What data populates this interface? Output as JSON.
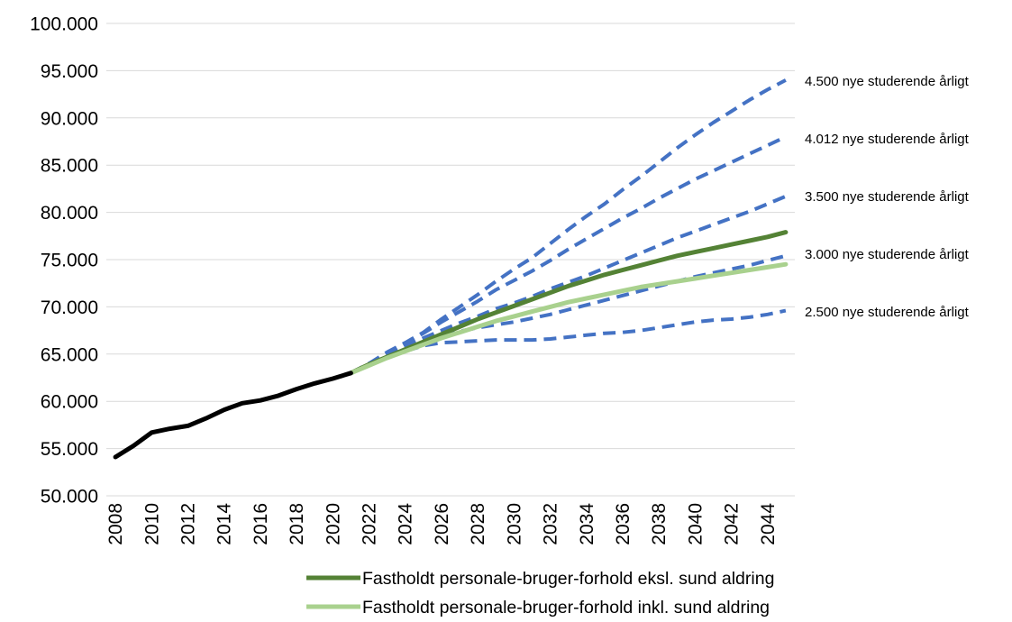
{
  "chart_data": {
    "type": "line",
    "title": "",
    "xlabel": "",
    "ylabel": "",
    "ylim": [
      50000,
      100000
    ],
    "xlim": [
      2008,
      2045
    ],
    "grid": true,
    "y_ticks": [
      "50.000",
      "55.000",
      "60.000",
      "65.000",
      "70.000",
      "75.000",
      "80.000",
      "85.000",
      "90.000",
      "95.000",
      "100.000"
    ],
    "x_ticks": [
      "2008",
      "2010",
      "2012",
      "2014",
      "2016",
      "2018",
      "2020",
      "2022",
      "2024",
      "2026",
      "2028",
      "2030",
      "2032",
      "2034",
      "2036",
      "2038",
      "2040",
      "2042",
      "2044"
    ],
    "colors": {
      "historical": "#000000",
      "scenario": "#4472C4",
      "ekskl": "#548235",
      "inkl": "#A9D18E",
      "grid": "#D9D9D9"
    },
    "series": [
      {
        "key": "historical",
        "style": "solid",
        "x": [
          2008,
          2009,
          2010,
          2011,
          2012,
          2013,
          2014,
          2015,
          2016,
          2017,
          2018,
          2019,
          2020,
          2021
        ],
        "y": [
          54100,
          55300,
          56700,
          57100,
          57400,
          58200,
          59100,
          59800,
          60100,
          60600,
          61300,
          61900,
          62400,
          63000
        ]
      },
      {
        "key": "scenario",
        "style": "dashed",
        "label": "4.500 nye studerende årligt",
        "x": [
          2021,
          2022,
          2023,
          2024,
          2025,
          2026,
          2027,
          2028,
          2029,
          2030,
          2031,
          2032,
          2033,
          2034,
          2035,
          2036,
          2037,
          2038,
          2039,
          2040,
          2041,
          2042,
          2043,
          2044,
          2045
        ],
        "y": [
          63000,
          64000,
          65200,
          66200,
          67300,
          68700,
          70000,
          71300,
          72700,
          74000,
          75200,
          76700,
          78200,
          79600,
          80900,
          82400,
          83800,
          85300,
          86800,
          88200,
          89500,
          90700,
          91900,
          93000,
          94000
        ]
      },
      {
        "key": "scenario",
        "style": "dashed",
        "label": "4.012 nye studerende årligt",
        "x": [
          2021,
          2022,
          2023,
          2024,
          2025,
          2026,
          2027,
          2028,
          2029,
          2030,
          2031,
          2032,
          2033,
          2034,
          2035,
          2036,
          2037,
          2038,
          2039,
          2040,
          2041,
          2042,
          2043,
          2044,
          2045
        ],
        "y": [
          63000,
          64000,
          65100,
          66100,
          67200,
          68400,
          69500,
          70600,
          71800,
          72800,
          73800,
          74900,
          76100,
          77200,
          78300,
          79400,
          80400,
          81500,
          82500,
          83500,
          84400,
          85300,
          86200,
          87100,
          88000
        ]
      },
      {
        "key": "scenario",
        "style": "dashed",
        "label": "3.500 nye studerende årligt",
        "x": [
          2021,
          2022,
          2023,
          2024,
          2025,
          2026,
          2027,
          2028,
          2029,
          2030,
          2031,
          2032,
          2033,
          2034,
          2035,
          2036,
          2037,
          2038,
          2039,
          2040,
          2041,
          2042,
          2043,
          2044,
          2045
        ],
        "y": [
          63000,
          63900,
          64900,
          65800,
          66700,
          67500,
          68300,
          69000,
          69800,
          70400,
          71100,
          71900,
          72600,
          73300,
          74100,
          74900,
          75700,
          76500,
          77300,
          78000,
          78700,
          79400,
          80100,
          80900,
          81700
        ]
      },
      {
        "key": "scenario",
        "style": "dashed",
        "label": "3.000 nye studerende årligt",
        "x": [
          2021,
          2022,
          2023,
          2024,
          2025,
          2026,
          2027,
          2028,
          2029,
          2030,
          2031,
          2032,
          2033,
          2034,
          2035,
          2036,
          2037,
          2038,
          2039,
          2040,
          2041,
          2042,
          2043,
          2044,
          2045
        ],
        "y": [
          63000,
          63900,
          64800,
          65600,
          66300,
          66900,
          67400,
          67800,
          68100,
          68400,
          68800,
          69200,
          69700,
          70200,
          70700,
          71200,
          71700,
          72200,
          72700,
          73200,
          73600,
          74000,
          74400,
          74900,
          75400
        ]
      },
      {
        "key": "scenario",
        "style": "dashed",
        "label": "2.500 nye studerende årligt",
        "x": [
          2021,
          2022,
          2023,
          2024,
          2025,
          2026,
          2027,
          2028,
          2029,
          2030,
          2031,
          2032,
          2033,
          2034,
          2035,
          2036,
          2037,
          2038,
          2039,
          2040,
          2041,
          2042,
          2043,
          2044,
          2045
        ],
        "y": [
          63000,
          63800,
          64600,
          65300,
          65900,
          66200,
          66300,
          66400,
          66500,
          66500,
          66500,
          66600,
          66800,
          67000,
          67200,
          67300,
          67500,
          67800,
          68100,
          68400,
          68600,
          68700,
          68900,
          69200,
          69600
        ]
      },
      {
        "key": "ekskl",
        "style": "solid",
        "name": "Fastholdt personale-bruger-forhold eksl. sund aldring",
        "x": [
          2021,
          2022,
          2023,
          2024,
          2025,
          2026,
          2027,
          2028,
          2029,
          2030,
          2031,
          2032,
          2033,
          2034,
          2035,
          2036,
          2037,
          2038,
          2039,
          2040,
          2041,
          2042,
          2043,
          2044,
          2045
        ],
        "y": [
          63000,
          63900,
          64700,
          65500,
          66300,
          67100,
          67900,
          68700,
          69400,
          70100,
          70800,
          71500,
          72200,
          72800,
          73400,
          73900,
          74400,
          74900,
          75400,
          75800,
          76200,
          76600,
          77000,
          77400,
          77900
        ]
      },
      {
        "key": "inkl",
        "style": "solid",
        "name": "Fastholdt personale-bruger-forhold inkl. sund aldring",
        "x": [
          2021,
          2022,
          2023,
          2024,
          2025,
          2026,
          2027,
          2028,
          2029,
          2030,
          2031,
          2032,
          2033,
          2034,
          2035,
          2036,
          2037,
          2038,
          2039,
          2040,
          2041,
          2042,
          2043,
          2044,
          2045
        ],
        "y": [
          63000,
          63800,
          64600,
          65300,
          66000,
          66700,
          67300,
          67900,
          68500,
          69000,
          69500,
          70000,
          70500,
          70900,
          71300,
          71700,
          72100,
          72400,
          72700,
          73000,
          73300,
          73600,
          73900,
          74200,
          74500
        ]
      }
    ]
  }
}
